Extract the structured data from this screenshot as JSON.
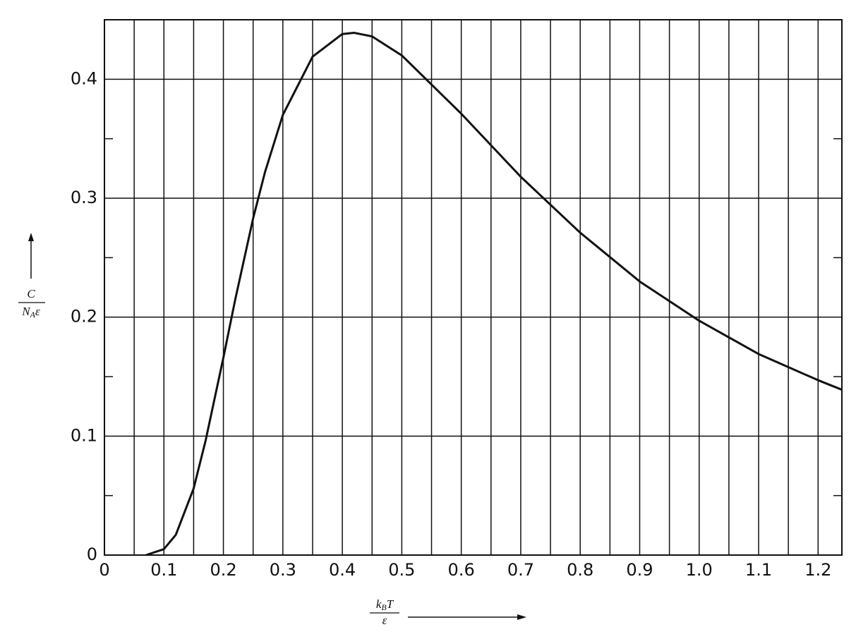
{
  "chart_data": {
    "type": "line",
    "y_label": {
      "numerator": "C",
      "denominator": [
        "N",
        "A",
        "ε"
      ]
    },
    "x_label": {
      "numerator": [
        "k",
        "B",
        "T"
      ],
      "denominator": "ε"
    },
    "x": [
      0.07,
      0.1,
      0.12,
      0.15,
      0.17,
      0.2,
      0.22,
      0.25,
      0.27,
      0.3,
      0.35,
      0.4,
      0.42,
      0.45,
      0.5,
      0.6,
      0.7,
      0.8,
      0.9,
      1.0,
      1.1,
      1.2,
      1.24
    ],
    "series": [
      {
        "color": "#111111",
        "values": [
          0.0,
          0.005,
          0.017,
          0.056,
          0.096,
          0.166,
          0.215,
          0.283,
          0.322,
          0.37,
          0.419,
          0.438,
          0.439,
          0.436,
          0.42,
          0.371,
          0.318,
          0.271,
          0.23,
          0.197,
          0.169,
          0.147,
          0.139
        ]
      }
    ],
    "xlim": [
      0,
      1.24
    ],
    "ylim": [
      0,
      0.45
    ],
    "xticks": [
      0,
      0.1,
      0.2,
      0.3,
      0.4,
      0.5,
      0.6,
      0.7,
      0.8,
      0.9,
      {
        "value": 1,
        "label": "1.0"
      },
      1.1,
      1.2
    ],
    "yticks": [
      0,
      0.1,
      0.2,
      0.3,
      0.4
    ],
    "x_minor_ticks": [
      0.05,
      0.15,
      0.25,
      0.35,
      0.45,
      0.55,
      0.65,
      0.75,
      0.85,
      0.95,
      1.05,
      1.15
    ],
    "y_minor_ticks": [
      0.05,
      0.15,
      0.25,
      0.35
    ],
    "grid": true
  }
}
